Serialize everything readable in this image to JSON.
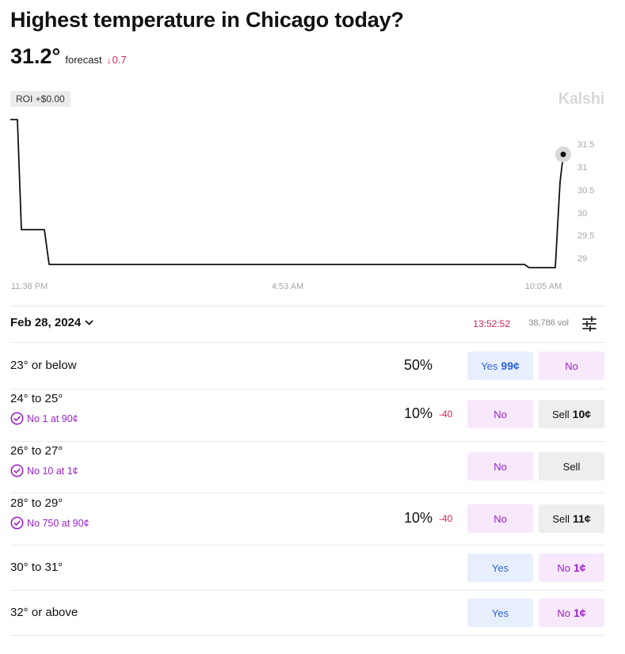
{
  "market": {
    "title": "Highest temperature in Chicago today?",
    "value": "31.2°",
    "forecast_label": "forecast",
    "change_arrow": "↓",
    "change_value": "0.7",
    "roi": "ROI +$0.00",
    "brand": "Kalshi"
  },
  "chart": {
    "y_ticks": [
      "31.5",
      "31",
      "30.5",
      "30",
      "29.5",
      "29"
    ],
    "x_ticks": [
      "11:38 PM",
      "4:53 AM",
      "10:05 AM"
    ],
    "line_color": "#111111",
    "marker_color": "#d9d9d9"
  },
  "controls": {
    "date": "Feb 28, 2024",
    "timer": "13:52:52",
    "volume": "38,786",
    "volume_unit": "vol",
    "settings_icon": "sliders-icon"
  },
  "outcomes": [
    {
      "label": "23° or below",
      "percent": "50%",
      "change": "",
      "position": "",
      "buttons": [
        {
          "kind": "yes",
          "text": "Yes",
          "price": "99¢"
        },
        {
          "kind": "no",
          "text": "No",
          "price": ""
        }
      ]
    },
    {
      "label": "24° to 25°",
      "percent": "10%",
      "change": "-40",
      "position": "No 1 at 90¢",
      "buttons": [
        {
          "kind": "no",
          "text": "No",
          "price": ""
        },
        {
          "kind": "sell",
          "text": "Sell",
          "price": "10¢"
        }
      ]
    },
    {
      "label": "26° to 27°",
      "percent": "",
      "change": "",
      "position": "No 10 at 1¢",
      "buttons": [
        {
          "kind": "no",
          "text": "No",
          "price": ""
        },
        {
          "kind": "sell",
          "text": "Sell",
          "price": ""
        }
      ]
    },
    {
      "label": "28° to 29°",
      "percent": "10%",
      "change": "-40",
      "position": "No 750 at 90¢",
      "buttons": [
        {
          "kind": "no",
          "text": "No",
          "price": ""
        },
        {
          "kind": "sell",
          "text": "Sell",
          "price": "11¢"
        }
      ]
    },
    {
      "label": "30° to 31°",
      "percent": "",
      "change": "",
      "position": "",
      "buttons": [
        {
          "kind": "yes",
          "text": "Yes",
          "price": ""
        },
        {
          "kind": "no",
          "text": "No",
          "price": "1¢"
        }
      ]
    },
    {
      "label": "32° or above",
      "percent": "",
      "change": "",
      "position": "",
      "buttons": [
        {
          "kind": "yes",
          "text": "Yes",
          "price": ""
        },
        {
          "kind": "no",
          "text": "No",
          "price": "1¢"
        }
      ]
    }
  ]
}
